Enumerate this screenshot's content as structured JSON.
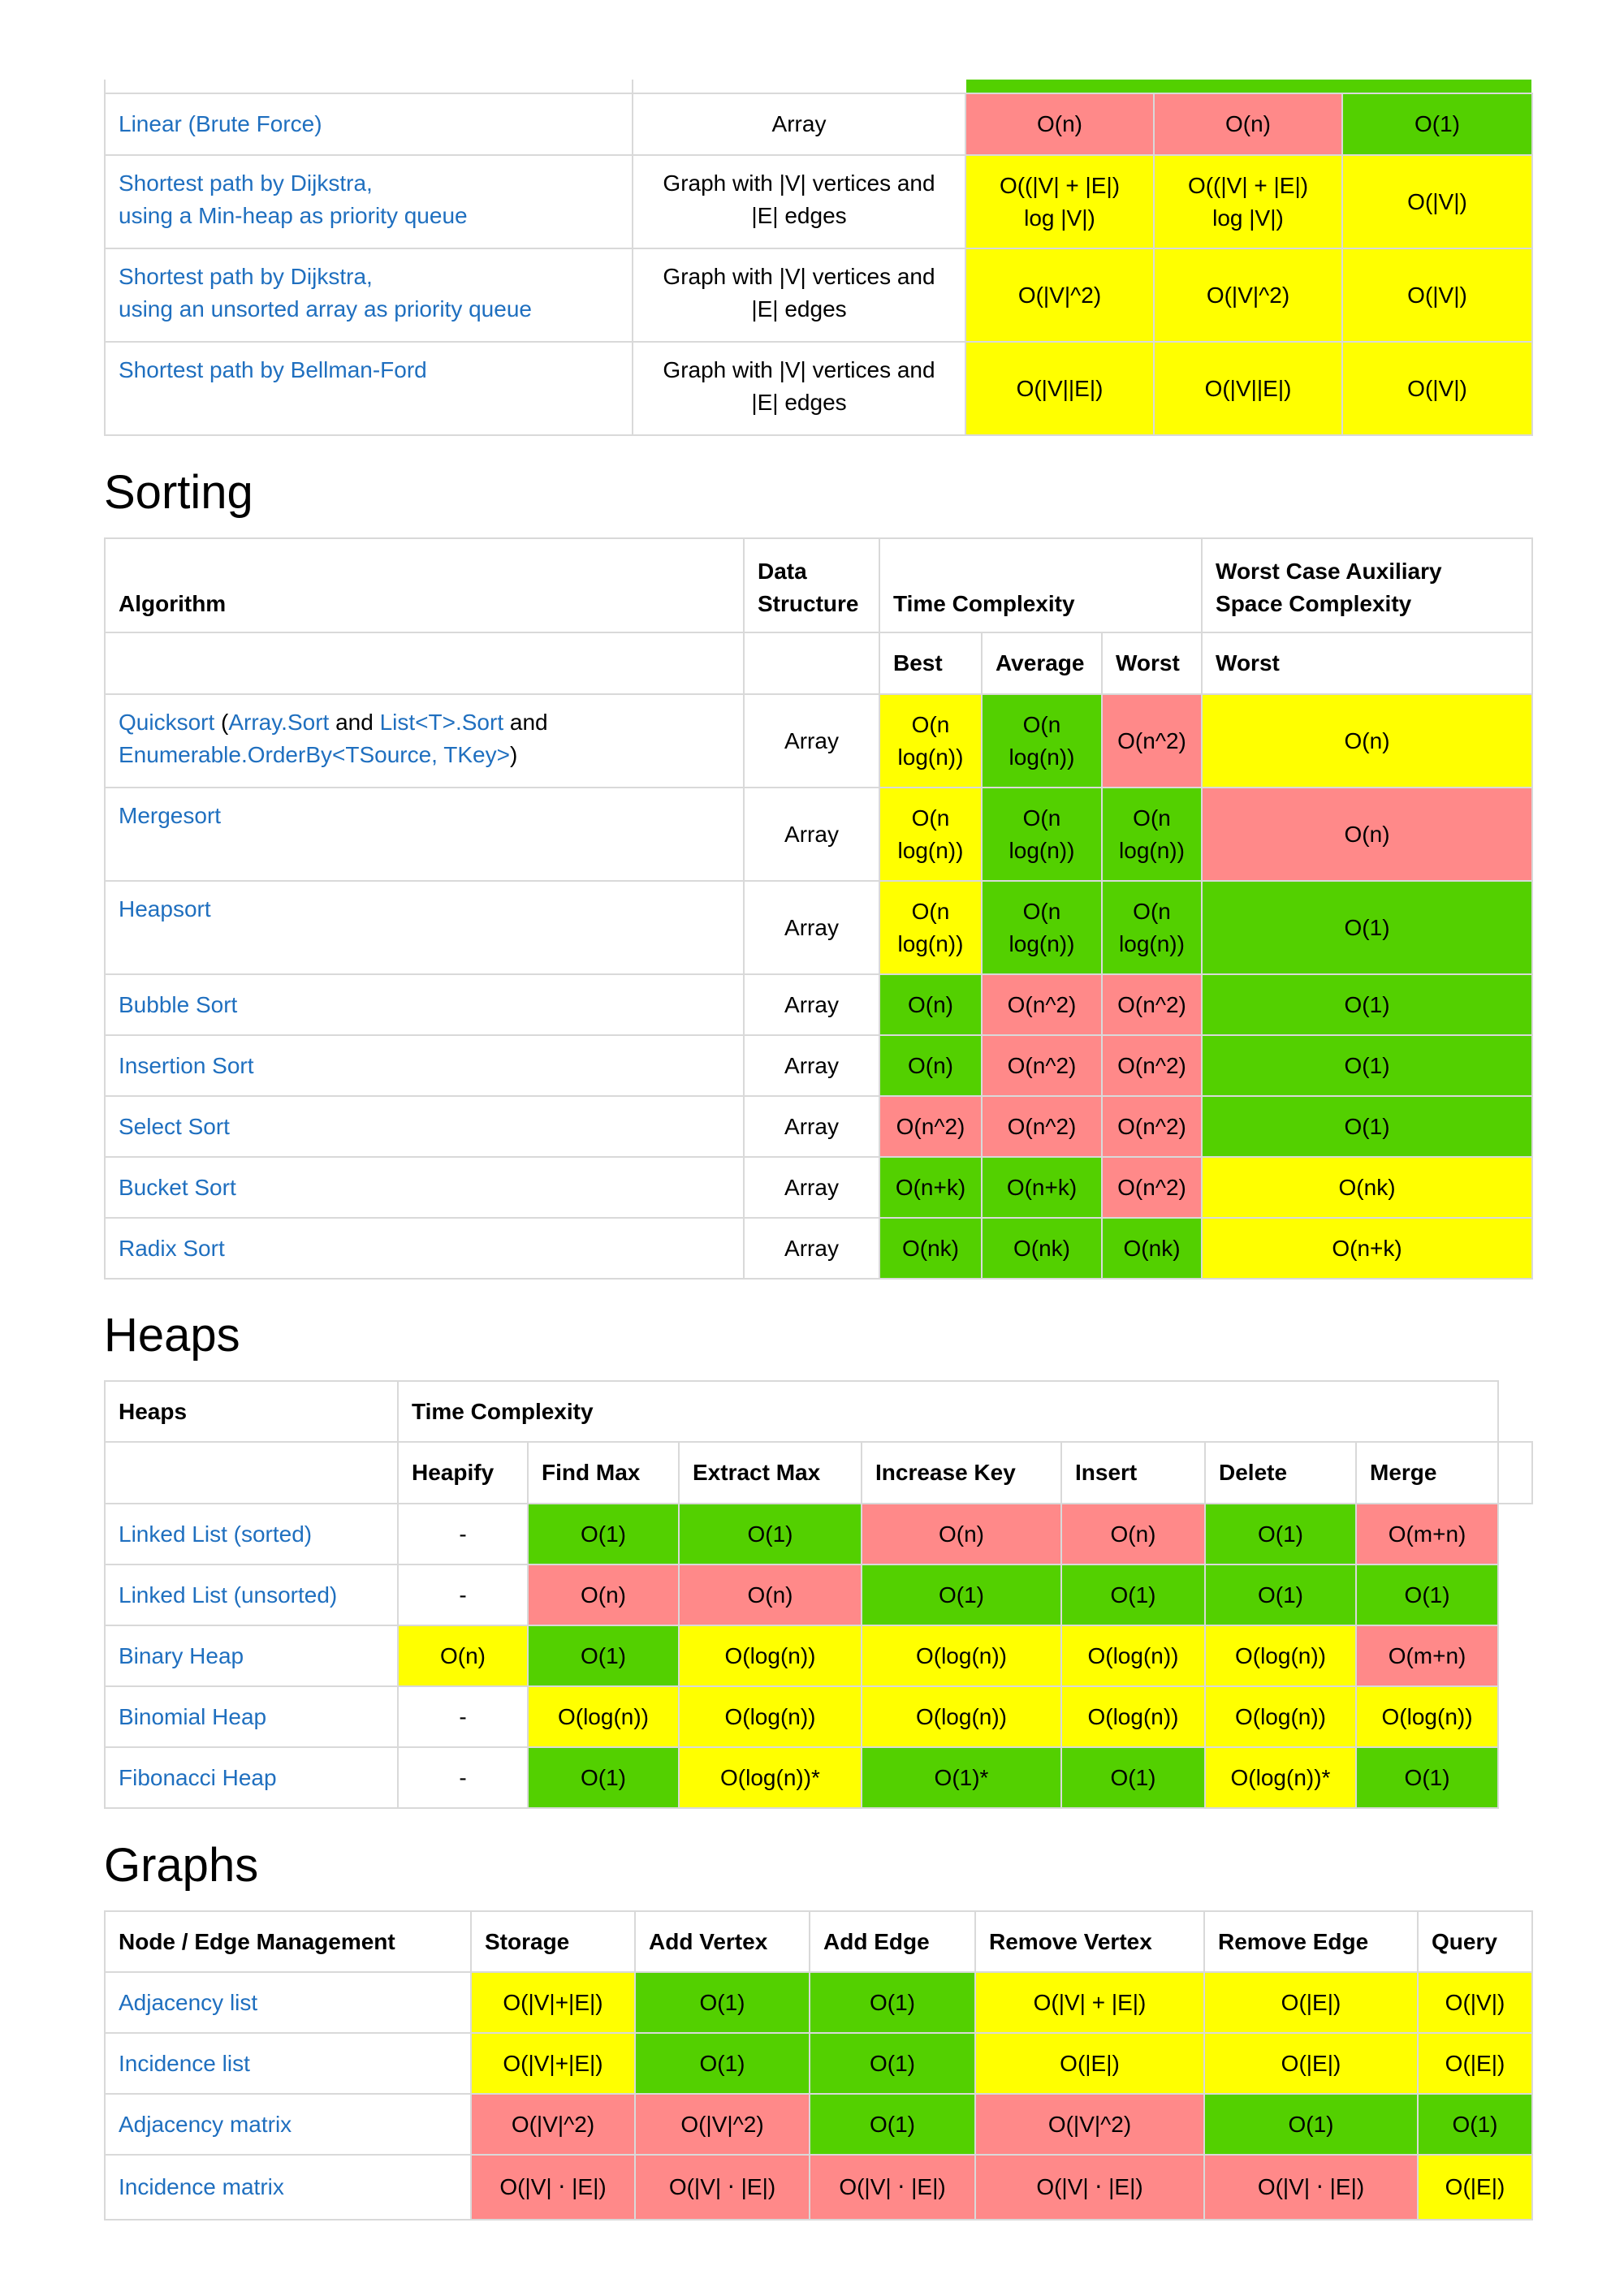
{
  "searching_cont": {
    "rows": [
      {
        "algorithm": [
          "Linear (Brute Force)"
        ],
        "structure": [
          "Array"
        ],
        "vals": [
          "O(n)",
          "O(n)",
          "O(1)"
        ],
        "colors": [
          "r",
          "r",
          "g"
        ]
      },
      {
        "algorithm": [
          "Shortest path by Dijkstra,",
          "using a Min-heap as priority queue"
        ],
        "structure": [
          "Graph with |V| vertices and",
          "|E| edges"
        ],
        "vals": [
          [
            "O((|V| + |E|)",
            "log |V|)"
          ],
          [
            "O((|V| + |E|)",
            "log |V|)"
          ],
          [
            "O(|V|)"
          ]
        ],
        "colors": [
          "y",
          "y",
          "y"
        ]
      },
      {
        "algorithm": [
          "Shortest path by Dijkstra,",
          "using an unsorted array as priority queue"
        ],
        "structure": [
          "Graph with |V| vertices and",
          "|E| edges"
        ],
        "vals": [
          [
            "O(|V|^2)"
          ],
          [
            "O(|V|^2)"
          ],
          [
            "O(|V|)"
          ]
        ],
        "colors": [
          "y",
          "y",
          "y"
        ]
      },
      {
        "algorithm": [
          "Shortest path by Bellman-Ford"
        ],
        "structure": [
          "Graph with |V| vertices and",
          "|E| edges"
        ],
        "vals": [
          [
            "O(|V||E|)"
          ],
          [
            "O(|V||E|)"
          ],
          [
            "O(|V|)"
          ]
        ],
        "colors": [
          "y",
          "y",
          "y"
        ]
      }
    ]
  },
  "sorting": {
    "title": "Sorting",
    "headers": {
      "algorithm": "Algorithm",
      "data_structure_1": "Data",
      "data_structure_2": "Structure",
      "time_complexity": "Time Complexity",
      "space_1": "Worst Case Auxiliary",
      "space_2": "Space Complexity",
      "best": "Best",
      "average": "Average",
      "worst": "Worst",
      "space_worst": "Worst"
    },
    "quicksort": {
      "link1": "Quicksort",
      "text1": " (",
      "link2": "Array.Sort",
      "text2": " and ",
      "link3": "List<T>.Sort",
      "text3": " and",
      "link4": "Enumerable.OrderBy<TSource, TKey>",
      "text4": ")"
    },
    "rows": [
      {
        "name": "Quicksort",
        "structure": "Array",
        "best": [
          "O(n",
          "log(n))"
        ],
        "avg": [
          "O(n",
          "log(n))"
        ],
        "worst": [
          "O(n^2)"
        ],
        "space": "O(n)",
        "colors": [
          "y",
          "g",
          "r",
          "y"
        ]
      },
      {
        "name": "Mergesort",
        "structure": "Array",
        "best": [
          "O(n",
          "log(n))"
        ],
        "avg": [
          "O(n",
          "log(n))"
        ],
        "worst": [
          "O(n",
          "log(n))"
        ],
        "space": "O(n)",
        "colors": [
          "y",
          "g",
          "g",
          "r"
        ]
      },
      {
        "name": "Heapsort",
        "structure": "Array",
        "best": [
          "O(n",
          "log(n))"
        ],
        "avg": [
          "O(n",
          "log(n))"
        ],
        "worst": [
          "O(n",
          "log(n))"
        ],
        "space": "O(1)",
        "colors": [
          "y",
          "g",
          "g",
          "g"
        ]
      },
      {
        "name": "Bubble Sort",
        "structure": "Array",
        "best": [
          "O(n)"
        ],
        "avg": [
          "O(n^2)"
        ],
        "worst": [
          "O(n^2)"
        ],
        "space": "O(1)",
        "colors": [
          "g",
          "r",
          "r",
          "g"
        ]
      },
      {
        "name": "Insertion Sort",
        "structure": "Array",
        "best": [
          "O(n)"
        ],
        "avg": [
          "O(n^2)"
        ],
        "worst": [
          "O(n^2)"
        ],
        "space": "O(1)",
        "colors": [
          "g",
          "r",
          "r",
          "g"
        ]
      },
      {
        "name": "Select Sort",
        "structure": "Array",
        "best": [
          "O(n^2)"
        ],
        "avg": [
          "O(n^2)"
        ],
        "worst": [
          "O(n^2)"
        ],
        "space": "O(1)",
        "colors": [
          "r",
          "r",
          "r",
          "g"
        ]
      },
      {
        "name": "Bucket Sort",
        "structure": "Array",
        "best": [
          "O(n+k)"
        ],
        "avg": [
          "O(n+k)"
        ],
        "worst": [
          "O(n^2)"
        ],
        "space": "O(nk)",
        "colors": [
          "g",
          "g",
          "r",
          "y"
        ]
      },
      {
        "name": "Radix Sort",
        "structure": "Array",
        "best": [
          "O(nk)"
        ],
        "avg": [
          "O(nk)"
        ],
        "worst": [
          "O(nk)"
        ],
        "space": "O(n+k)",
        "colors": [
          "g",
          "g",
          "g",
          "y"
        ]
      }
    ]
  },
  "heaps": {
    "title": "Heaps",
    "headers": {
      "heaps": "Heaps",
      "time_complexity": "Time Complexity",
      "cols": [
        "Heapify",
        "Find Max",
        "Extract Max",
        "Increase Key",
        "Insert",
        "Delete",
        "Merge"
      ]
    },
    "rows": [
      {
        "name": "Linked List (sorted)",
        "vals": [
          "-",
          "O(1)",
          "O(1)",
          "O(n)",
          "O(n)",
          "O(1)",
          "O(m+n)"
        ],
        "colors": [
          "",
          "g",
          "g",
          "r",
          "r",
          "g",
          "r"
        ]
      },
      {
        "name": "Linked List (unsorted)",
        "vals": [
          "-",
          "O(n)",
          "O(n)",
          "O(1)",
          "O(1)",
          "O(1)",
          "O(1)"
        ],
        "colors": [
          "",
          "r",
          "r",
          "g",
          "g",
          "g",
          "g"
        ]
      },
      {
        "name": "Binary Heap",
        "vals": [
          "O(n)",
          "O(1)",
          "O(log(n))",
          "O(log(n))",
          "O(log(n))",
          "O(log(n))",
          "O(m+n)"
        ],
        "colors": [
          "y",
          "g",
          "y",
          "y",
          "y",
          "y",
          "r"
        ]
      },
      {
        "name": "Binomial Heap",
        "vals": [
          "-",
          "O(log(n))",
          "O(log(n))",
          "O(log(n))",
          "O(log(n))",
          "O(log(n))",
          "O(log(n))"
        ],
        "colors": [
          "",
          "y",
          "y",
          "y",
          "y",
          "y",
          "y"
        ]
      },
      {
        "name": "Fibonacci Heap",
        "vals": [
          "-",
          "O(1)",
          "O(log(n))*",
          "O(1)*",
          "O(1)",
          "O(log(n))*",
          "O(1)"
        ],
        "colors": [
          "",
          "g",
          "y",
          "g",
          "g",
          "y",
          "g"
        ]
      }
    ]
  },
  "graphs": {
    "title": "Graphs",
    "headers": [
      "Node / Edge Management",
      "Storage",
      "Add Vertex",
      "Add Edge",
      "Remove Vertex",
      "Remove Edge",
      "Query"
    ],
    "rows": [
      {
        "name": "Adjacency list",
        "vals": [
          "O(|V|+|E|)",
          "O(1)",
          "O(1)",
          "O(|V| + |E|)",
          "O(|E|)",
          "O(|V|)"
        ],
        "colors": [
          "y",
          "g",
          "g",
          "y",
          "y",
          "y"
        ]
      },
      {
        "name": "Incidence list",
        "vals": [
          "O(|V|+|E|)",
          "O(1)",
          "O(1)",
          "O(|E|)",
          "O(|E|)",
          "O(|E|)"
        ],
        "colors": [
          "y",
          "g",
          "g",
          "y",
          "y",
          "y"
        ]
      },
      {
        "name": "Adjacency matrix",
        "vals": [
          "O(|V|^2)",
          "O(|V|^2)",
          "O(1)",
          "O(|V|^2)",
          "O(1)",
          "O(1)"
        ],
        "colors": [
          "r",
          "r",
          "g",
          "r",
          "g",
          "g"
        ]
      },
      {
        "name": "Incidence matrix",
        "vals": [
          "O(|V| ⋅ |E|)",
          "O(|V| ⋅ |E|)",
          "O(|V| ⋅ |E|)",
          "O(|V| ⋅ |E|)",
          "O(|V| ⋅ |E|)",
          "O(|E|)"
        ],
        "colors": [
          "r",
          "r",
          "r",
          "r",
          "r",
          "y"
        ]
      }
    ]
  },
  "colors": {
    "green": "#53d000",
    "yellow": "#ffff00",
    "red": "#ff8989",
    "link": "#1f6fbf",
    "border": "#d9d9d9"
  }
}
